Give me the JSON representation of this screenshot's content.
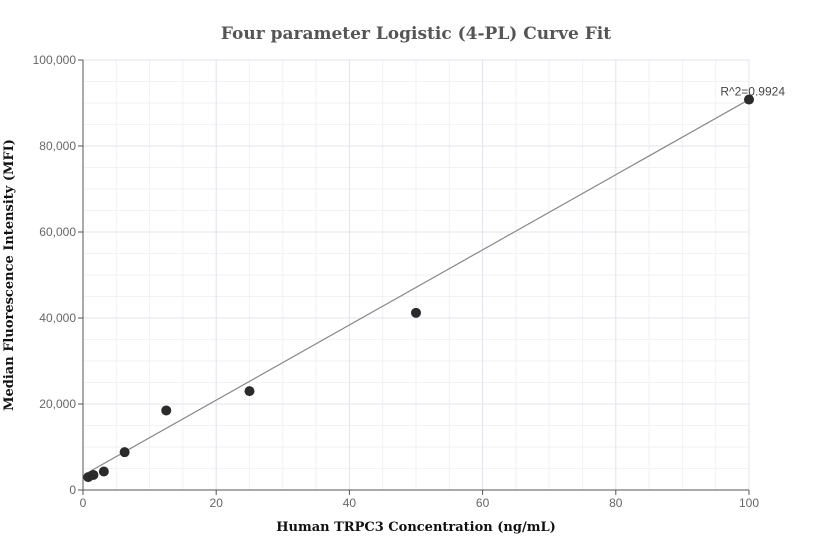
{
  "chart_data": {
    "type": "scatter",
    "title": "Four parameter Logistic (4-PL) Curve Fit",
    "xlabel": "Human TRPC3 Concentration (ng/mL)",
    "ylabel": "Median Fluorescence Intensity (MFI)",
    "xlim": [
      0,
      100
    ],
    "ylim": [
      0,
      100000
    ],
    "x_ticks": [
      0,
      20,
      40,
      60,
      80,
      100
    ],
    "x_tick_labels": [
      "0",
      "20",
      "40",
      "60",
      "80",
      "100"
    ],
    "y_ticks": [
      0,
      20000,
      40000,
      60000,
      80000,
      100000
    ],
    "y_tick_labels": [
      "0",
      "20,000",
      "40,000",
      "60,000",
      "80,000",
      "100,000"
    ],
    "grid": true,
    "points": [
      {
        "x": 0.78,
        "y": 3000
      },
      {
        "x": 1.56,
        "y": 3500
      },
      {
        "x": 3.13,
        "y": 4300
      },
      {
        "x": 6.25,
        "y": 8800
      },
      {
        "x": 12.5,
        "y": 18500
      },
      {
        "x": 25,
        "y": 23000
      },
      {
        "x": 50,
        "y": 41200
      },
      {
        "x": 100,
        "y": 90800
      }
    ],
    "fit_line": {
      "x": [
        0.78,
        100
      ],
      "y": [
        4100,
        90800
      ]
    },
    "annotation": {
      "text": "R^2=0.9924",
      "x": 100,
      "y": 90800
    },
    "colors": {
      "points": "#2b2b2b",
      "fit_line": "#888888",
      "grid": "#e4e4ee"
    }
  }
}
